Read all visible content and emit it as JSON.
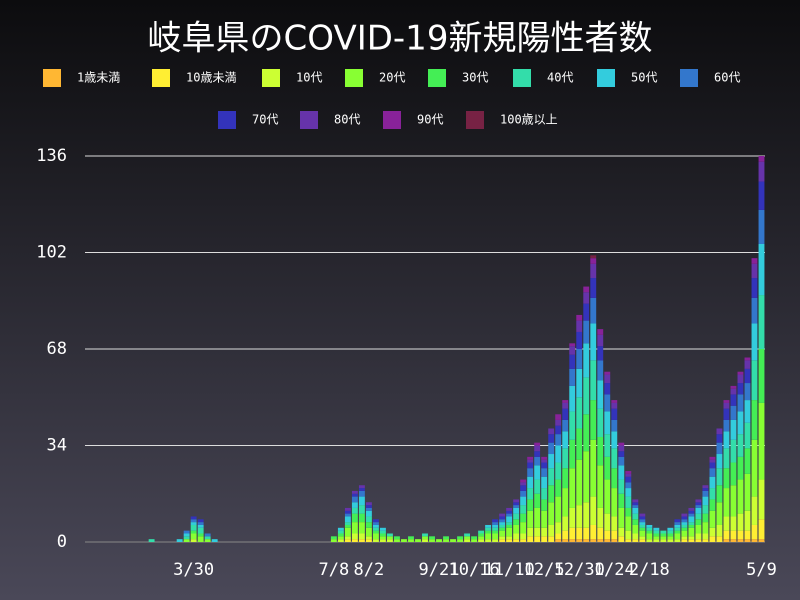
{
  "chart_data": {
    "type": "stacked_bar",
    "title": "岐阜県のCOVID-19新規陽性者数",
    "categories": [
      null,
      null,
      null,
      null,
      null,
      null,
      null,
      null,
      null,
      null,
      null,
      null,
      null,
      null,
      null,
      "3/30",
      null,
      null,
      null,
      null,
      null,
      null,
      null,
      null,
      null,
      null,
      null,
      null,
      null,
      null,
      null,
      null,
      null,
      null,
      null,
      "7/8",
      null,
      null,
      null,
      null,
      "8/2",
      null,
      null,
      null,
      null,
      null,
      null,
      null,
      null,
      null,
      "9/21",
      null,
      null,
      null,
      null,
      "10/16",
      null,
      null,
      null,
      null,
      "11/10",
      null,
      null,
      null,
      null,
      "12/5",
      null,
      null,
      null,
      null,
      "12/30",
      null,
      null,
      null,
      null,
      "1/24",
      null,
      null,
      null,
      null,
      "2/18",
      null,
      null,
      null,
      null,
      null,
      null,
      null,
      null,
      null,
      null,
      null,
      null,
      null,
      null,
      null,
      "5/9"
    ],
    "ylim": [
      0,
      136
    ],
    "yticks": [
      0,
      34,
      68,
      102,
      136
    ],
    "grid": true,
    "series": [
      {
        "name": "1歳未満",
        "color": "#ffb733",
        "values": [
          0,
          0,
          0,
          0,
          0,
          0,
          0,
          0,
          0,
          0,
          0,
          0,
          0,
          0,
          0,
          0,
          0,
          0,
          0,
          0,
          0,
          0,
          0,
          0,
          0,
          0,
          0,
          0,
          0,
          0,
          0,
          0,
          0,
          0,
          0,
          0,
          0,
          0,
          0,
          0,
          0,
          0,
          0,
          0,
          0,
          0,
          0,
          0,
          0,
          0,
          0,
          0,
          0,
          0,
          0,
          0,
          0,
          0,
          0,
          0,
          0,
          0,
          0,
          0,
          0,
          0,
          0,
          1,
          1,
          1,
          1,
          1,
          1,
          1,
          1,
          1,
          0,
          0,
          0,
          0,
          0,
          0,
          0,
          0,
          0,
          0,
          0,
          0,
          0,
          0,
          0,
          1,
          1,
          1,
          1,
          1,
          1
        ]
      },
      {
        "name": "10歳未満",
        "color": "#ffee33",
        "values": [
          0,
          0,
          0,
          0,
          0,
          0,
          0,
          0,
          0,
          0,
          0,
          0,
          0,
          0,
          0,
          0,
          0,
          0,
          0,
          0,
          0,
          0,
          0,
          0,
          0,
          0,
          0,
          0,
          0,
          0,
          0,
          0,
          0,
          0,
          0,
          0,
          0,
          1,
          1,
          1,
          1,
          0,
          0,
          0,
          0,
          0,
          0,
          0,
          0,
          0,
          0,
          0,
          0,
          0,
          0,
          0,
          0,
          0,
          0,
          1,
          1,
          1,
          1,
          2,
          2,
          2,
          2,
          2,
          3,
          4,
          4,
          4,
          5,
          4,
          3,
          3,
          2,
          1,
          1,
          1,
          0,
          0,
          0,
          0,
          0,
          1,
          1,
          1,
          1,
          2,
          2,
          3,
          3,
          3,
          3,
          5,
          7
        ]
      },
      {
        "name": "10代",
        "color": "#ccff33",
        "values": [
          0,
          0,
          0,
          0,
          0,
          0,
          0,
          0,
          0,
          0,
          0,
          0,
          0,
          0,
          0,
          1,
          0,
          0,
          0,
          0,
          0,
          0,
          0,
          0,
          0,
          0,
          0,
          0,
          0,
          0,
          0,
          0,
          0,
          0,
          0,
          0,
          1,
          1,
          2,
          2,
          1,
          1,
          1,
          1,
          0,
          0,
          0,
          0,
          1,
          0,
          0,
          0,
          0,
          0,
          1,
          0,
          1,
          1,
          1,
          1,
          1,
          2,
          2,
          3,
          3,
          3,
          4,
          4,
          5,
          7,
          8,
          9,
          10,
          7,
          6,
          5,
          3,
          3,
          2,
          1,
          1,
          1,
          1,
          1,
          1,
          1,
          1,
          2,
          2,
          3,
          4,
          5,
          5,
          6,
          7,
          10,
          14
        ]
      },
      {
        "name": "20代",
        "color": "#88ff33",
        "values": [
          0,
          0,
          0,
          0,
          0,
          0,
          0,
          0,
          0,
          0,
          0,
          0,
          0,
          0,
          1,
          2,
          2,
          1,
          0,
          0,
          0,
          0,
          0,
          0,
          0,
          0,
          0,
          0,
          0,
          0,
          0,
          0,
          0,
          0,
          0,
          1,
          1,
          3,
          4,
          4,
          3,
          2,
          1,
          1,
          1,
          1,
          1,
          1,
          1,
          1,
          1,
          1,
          1,
          1,
          1,
          1,
          1,
          2,
          2,
          2,
          3,
          3,
          4,
          6,
          7,
          6,
          8,
          9,
          10,
          14,
          16,
          18,
          20,
          15,
          12,
          10,
          7,
          5,
          3,
          2,
          2,
          1,
          1,
          1,
          2,
          2,
          3,
          3,
          4,
          6,
          8,
          10,
          11,
          12,
          13,
          20,
          27
        ]
      },
      {
        "name": "30代",
        "color": "#44ee55",
        "values": [
          0,
          0,
          0,
          0,
          0,
          0,
          0,
          0,
          0,
          0,
          0,
          0,
          0,
          0,
          0,
          1,
          1,
          0,
          0,
          0,
          0,
          0,
          0,
          0,
          0,
          0,
          0,
          0,
          0,
          0,
          0,
          0,
          0,
          0,
          0,
          1,
          1,
          1,
          3,
          3,
          2,
          1,
          1,
          0,
          1,
          0,
          1,
          0,
          0,
          1,
          0,
          1,
          0,
          1,
          0,
          1,
          1,
          1,
          1,
          1,
          1,
          2,
          3,
          4,
          5,
          4,
          6,
          6,
          7,
          10,
          11,
          13,
          14,
          10,
          8,
          7,
          5,
          3,
          2,
          1,
          1,
          1,
          1,
          1,
          1,
          1,
          1,
          2,
          3,
          4,
          6,
          7,
          8,
          8,
          9,
          14,
          19
        ]
      },
      {
        "name": "40代",
        "color": "#33ddaa",
        "values": [
          0,
          0,
          0,
          0,
          0,
          0,
          0,
          0,
          0,
          1,
          0,
          0,
          0,
          0,
          1,
          2,
          2,
          1,
          0,
          0,
          0,
          0,
          0,
          0,
          0,
          0,
          0,
          0,
          0,
          0,
          0,
          0,
          0,
          0,
          0,
          0,
          1,
          1,
          2,
          3,
          2,
          1,
          1,
          1,
          0,
          0,
          0,
          0,
          1,
          0,
          0,
          0,
          0,
          0,
          1,
          0,
          1,
          1,
          1,
          1,
          1,
          2,
          3,
          4,
          5,
          4,
          6,
          6,
          7,
          10,
          11,
          13,
          14,
          10,
          8,
          7,
          5,
          4,
          2,
          1,
          1,
          1,
          1,
          1,
          1,
          1,
          1,
          2,
          3,
          4,
          6,
          7,
          8,
          8,
          9,
          14,
          19
        ]
      },
      {
        "name": "50代",
        "color": "#33ccdd",
        "values": [
          0,
          0,
          0,
          0,
          0,
          0,
          0,
          0,
          0,
          0,
          0,
          0,
          0,
          1,
          1,
          1,
          1,
          0,
          1,
          0,
          0,
          0,
          0,
          0,
          0,
          0,
          0,
          0,
          0,
          0,
          0,
          0,
          0,
          0,
          0,
          0,
          1,
          2,
          2,
          3,
          2,
          1,
          1,
          0,
          0,
          0,
          0,
          0,
          0,
          0,
          0,
          0,
          0,
          0,
          0,
          0,
          0,
          1,
          1,
          1,
          2,
          2,
          3,
          4,
          5,
          4,
          5,
          6,
          6,
          9,
          10,
          12,
          13,
          10,
          8,
          6,
          5,
          3,
          2,
          1,
          1,
          1,
          0,
          1,
          1,
          1,
          2,
          2,
          3,
          4,
          5,
          6,
          7,
          8,
          8,
          13,
          18
        ]
      },
      {
        "name": "60代",
        "color": "#3377cc",
        "values": [
          0,
          0,
          0,
          0,
          0,
          0,
          0,
          0,
          0,
          0,
          0,
          0,
          0,
          0,
          1,
          1,
          1,
          1,
          0,
          0,
          0,
          0,
          0,
          0,
          0,
          0,
          0,
          0,
          0,
          0,
          0,
          0,
          0,
          0,
          0,
          0,
          0,
          1,
          2,
          2,
          1,
          1,
          0,
          0,
          0,
          0,
          0,
          0,
          0,
          0,
          0,
          0,
          0,
          0,
          0,
          0,
          0,
          0,
          1,
          1,
          1,
          1,
          2,
          3,
          3,
          3,
          4,
          4,
          4,
          6,
          7,
          8,
          9,
          7,
          6,
          4,
          3,
          2,
          1,
          1,
          0,
          0,
          0,
          0,
          1,
          1,
          1,
          1,
          2,
          3,
          4,
          4,
          5,
          6,
          6,
          9,
          12
        ]
      },
      {
        "name": "70代",
        "color": "#3333bb",
        "values": [
          0,
          0,
          0,
          0,
          0,
          0,
          0,
          0,
          0,
          0,
          0,
          0,
          0,
          0,
          0,
          1,
          1,
          0,
          0,
          0,
          0,
          0,
          0,
          0,
          0,
          0,
          0,
          0,
          0,
          0,
          0,
          0,
          0,
          0,
          0,
          0,
          0,
          1,
          1,
          1,
          1,
          1,
          0,
          0,
          0,
          0,
          0,
          0,
          0,
          0,
          0,
          0,
          0,
          0,
          0,
          0,
          0,
          0,
          1,
          1,
          1,
          1,
          2,
          2,
          2,
          2,
          3,
          3,
          4,
          5,
          6,
          6,
          7,
          5,
          4,
          4,
          2,
          2,
          1,
          1,
          0,
          0,
          0,
          0,
          1,
          1,
          1,
          1,
          1,
          2,
          3,
          4,
          4,
          4,
          5,
          7,
          10
        ]
      },
      {
        "name": "80代",
        "color": "#6633aa",
        "values": [
          0,
          0,
          0,
          0,
          0,
          0,
          0,
          0,
          0,
          0,
          0,
          0,
          0,
          0,
          0,
          0,
          0,
          0,
          0,
          0,
          0,
          0,
          0,
          0,
          0,
          0,
          0,
          0,
          0,
          0,
          0,
          0,
          0,
          0,
          0,
          0,
          0,
          1,
          1,
          1,
          1,
          0,
          0,
          0,
          0,
          0,
          0,
          0,
          0,
          0,
          0,
          0,
          0,
          0,
          0,
          0,
          0,
          0,
          0,
          1,
          1,
          1,
          1,
          1,
          2,
          1,
          2,
          2,
          2,
          3,
          4,
          4,
          5,
          4,
          3,
          2,
          2,
          1,
          1,
          1,
          0,
          0,
          0,
          0,
          0,
          1,
          1,
          1,
          1,
          1,
          2,
          2,
          2,
          3,
          3,
          5,
          7
        ]
      },
      {
        "name": "90代",
        "color": "#882299",
        "values": [
          0,
          0,
          0,
          0,
          0,
          0,
          0,
          0,
          0,
          0,
          0,
          0,
          0,
          0,
          0,
          0,
          0,
          0,
          0,
          0,
          0,
          0,
          0,
          0,
          0,
          0,
          0,
          0,
          0,
          0,
          0,
          0,
          0,
          0,
          0,
          0,
          0,
          0,
          0,
          0,
          0,
          0,
          0,
          0,
          0,
          0,
          0,
          0,
          0,
          0,
          0,
          0,
          0,
          0,
          0,
          0,
          0,
          0,
          0,
          0,
          0,
          0,
          1,
          1,
          1,
          1,
          0,
          2,
          1,
          1,
          2,
          2,
          2,
          2,
          1,
          1,
          1,
          1,
          0,
          0,
          0,
          0,
          0,
          0,
          0,
          0,
          0,
          0,
          0,
          1,
          0,
          1,
          1,
          1,
          1,
          2,
          2
        ]
      },
      {
        "name": "100歳以上",
        "color": "#772244",
        "values": [
          0,
          0,
          0,
          0,
          0,
          0,
          0,
          0,
          0,
          0,
          0,
          0,
          0,
          0,
          0,
          0,
          0,
          0,
          0,
          0,
          0,
          0,
          0,
          0,
          0,
          0,
          0,
          0,
          0,
          0,
          0,
          0,
          0,
          0,
          0,
          0,
          0,
          0,
          0,
          0,
          0,
          0,
          0,
          0,
          0,
          0,
          0,
          0,
          0,
          0,
          0,
          0,
          0,
          0,
          0,
          0,
          0,
          0,
          0,
          0,
          0,
          0,
          0,
          0,
          0,
          0,
          0,
          0,
          0,
          0,
          0,
          0,
          1,
          0,
          0,
          0,
          0,
          0,
          0,
          0,
          0,
          0,
          0,
          0,
          0,
          0,
          0,
          0,
          0,
          0,
          0,
          0,
          0,
          0,
          0,
          0,
          0
        ]
      }
    ]
  }
}
